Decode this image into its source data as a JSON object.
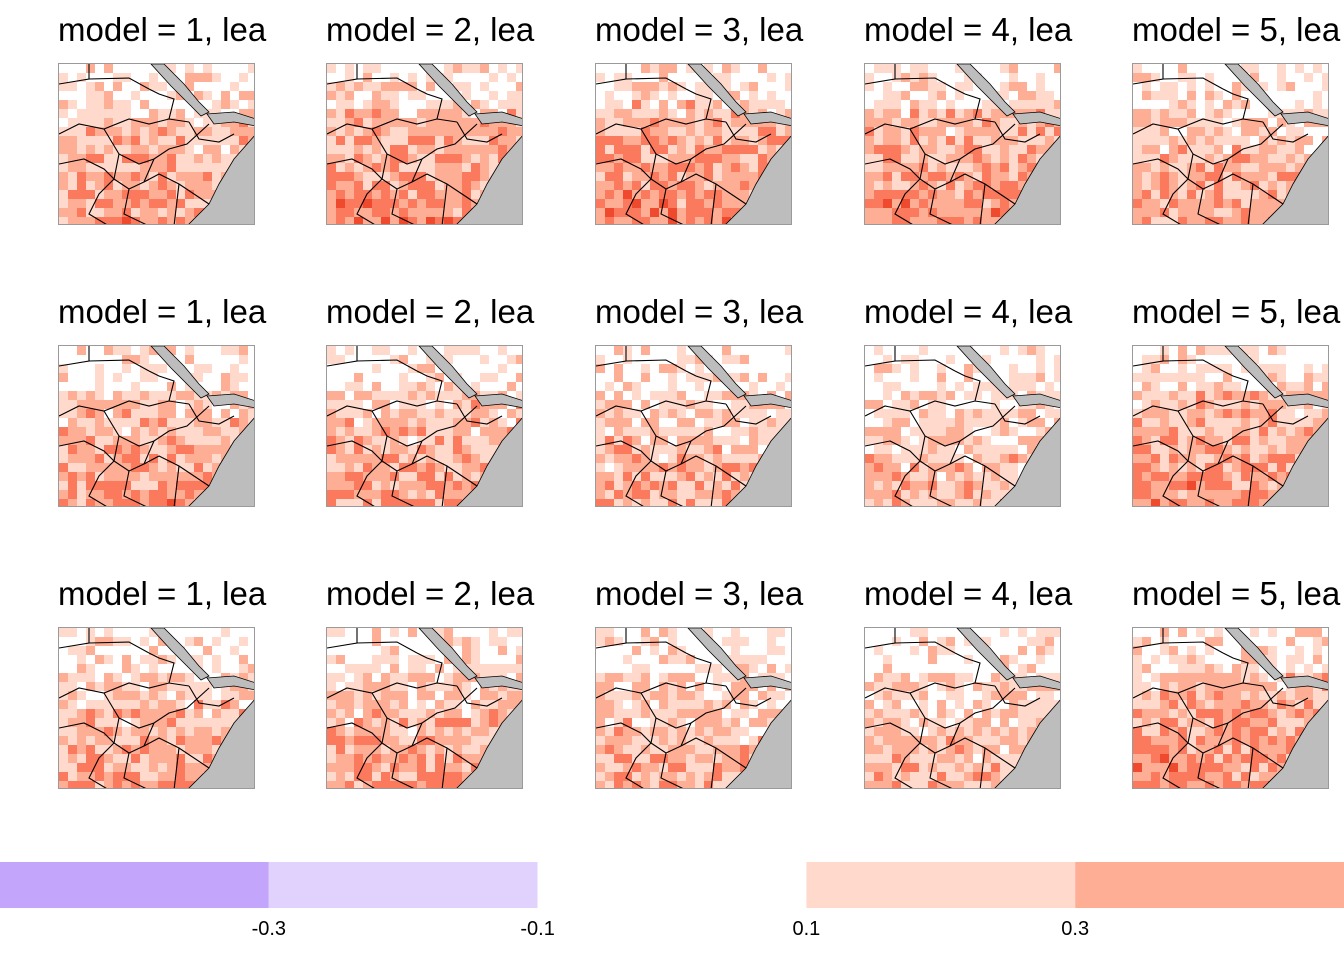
{
  "panels": [
    {
      "title": "model = 1, lea",
      "model": 1,
      "row": 1,
      "intensity": 0.62
    },
    {
      "title": "model = 2, lea",
      "model": 2,
      "row": 1,
      "intensity": 0.7
    },
    {
      "title": "model = 3, lea",
      "model": 3,
      "row": 1,
      "intensity": 0.72
    },
    {
      "title": "model = 4, lea",
      "model": 4,
      "row": 1,
      "intensity": 0.68
    },
    {
      "title": "model = 5, lea",
      "model": 5,
      "row": 1,
      "intensity": 0.55
    },
    {
      "title": "model = 1, lea",
      "model": 1,
      "row": 2,
      "intensity": 0.6
    },
    {
      "title": "model = 2, lea",
      "model": 2,
      "row": 2,
      "intensity": 0.58
    },
    {
      "title": "model = 3, lea",
      "model": 3,
      "row": 2,
      "intensity": 0.5
    },
    {
      "title": "model = 4, lea",
      "model": 4,
      "row": 2,
      "intensity": 0.45
    },
    {
      "title": "model = 5, lea",
      "model": 5,
      "row": 2,
      "intensity": 0.66
    },
    {
      "title": "model = 1, lea",
      "model": 1,
      "row": 3,
      "intensity": 0.58
    },
    {
      "title": "model = 2, lea",
      "model": 2,
      "row": 3,
      "intensity": 0.55
    },
    {
      "title": "model = 3, lea",
      "model": 3,
      "row": 3,
      "intensity": 0.5
    },
    {
      "title": "model = 4, lea",
      "model": 4,
      "row": 3,
      "intensity": 0.45
    },
    {
      "title": "model = 5, lea",
      "model": 5,
      "row": 3,
      "intensity": 0.7
    }
  ],
  "colorbar": {
    "ticks": [
      "-0.3",
      "-0.1",
      "0.1",
      "0.3"
    ],
    "tick_values": [
      -0.3,
      -0.1,
      0.1,
      0.3
    ],
    "range": [
      -0.5,
      0.5
    ],
    "bins": [
      {
        "from": -0.5,
        "to": -0.3,
        "color": "#c3a6fb"
      },
      {
        "from": -0.3,
        "to": -0.1,
        "color": "#e1d2fd"
      },
      {
        "from": -0.1,
        "to": 0.1,
        "color": "#ffffff"
      },
      {
        "from": 0.1,
        "to": 0.3,
        "color": "#ffd9cc"
      },
      {
        "from": 0.3,
        "to": 0.5,
        "color": "#ffae96"
      }
    ]
  },
  "colors": {
    "land_mask": "#bdbdbd",
    "border_line": "#000000",
    "positive_scale": [
      "#ffffff",
      "#ffd9cc",
      "#ffae96",
      "#fb7a5e",
      "#f04a2e"
    ]
  },
  "chart_data": {
    "type": "heatmap",
    "title": "",
    "layout": "small multiples, 3 rows x 5 models",
    "panel_titles": [
      "model = 1, lea",
      "model = 2, lea",
      "model = 3, lea",
      "model = 4, lea",
      "model = 5, lea"
    ],
    "colorbar_ticks": [
      -0.3,
      -0.1,
      0.1,
      0.3
    ],
    "colorbar_range": [
      -0.5,
      0.5
    ]
  }
}
